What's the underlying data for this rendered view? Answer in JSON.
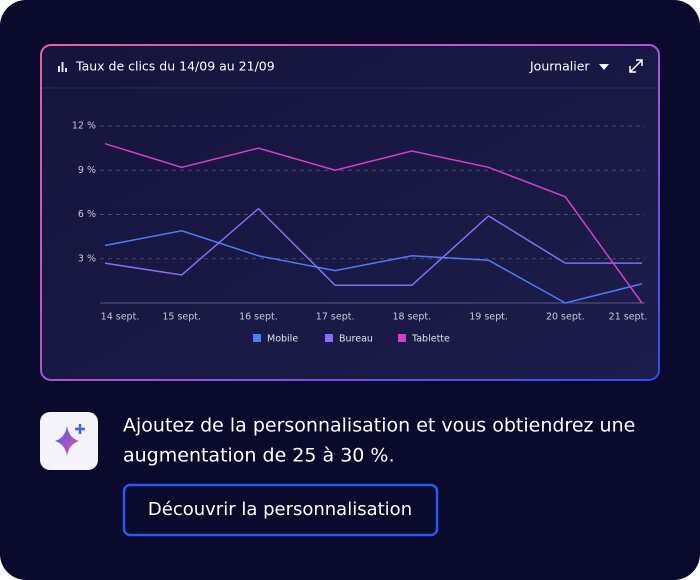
{
  "header": {
    "title": "Taux de clics du 14/09 au 21/09",
    "period": "Journalier"
  },
  "chart_data": {
    "type": "line",
    "categories": [
      "14 sept.",
      "15 sept.",
      "16 sept.",
      "17 sept.",
      "18 sept.",
      "19 sept.",
      "20 sept.",
      "21 sept."
    ],
    "series": [
      {
        "name": "Mobile",
        "color": "#4f7cf7",
        "values": [
          3.9,
          4.9,
          3.2,
          2.2,
          3.2,
          2.9,
          0,
          1.3
        ]
      },
      {
        "name": "Bureau",
        "color": "#8b6cf2",
        "values": [
          2.7,
          1.9,
          6.4,
          1.2,
          1.2,
          5.9,
          2.7,
          2.7
        ]
      },
      {
        "name": "Tablette",
        "color": "#d43fc6",
        "values": [
          10.8,
          9.2,
          10.5,
          9.0,
          10.3,
          9.2,
          7.2,
          0
        ]
      }
    ],
    "ylim": [
      0,
      12
    ],
    "yticks": [
      {
        "value": 3,
        "label": "3 %"
      },
      {
        "value": 6,
        "label": "6 %"
      },
      {
        "value": 9,
        "label": "9 %"
      },
      {
        "value": 12,
        "label": "12 %"
      }
    ],
    "grid": true
  },
  "promo": {
    "headline": [
      "Ajoutez de la personnalisation et vous obtiendrez une",
      "augmentation de 25 à 30 %."
    ],
    "button": "Découvrir la personnalisation"
  }
}
